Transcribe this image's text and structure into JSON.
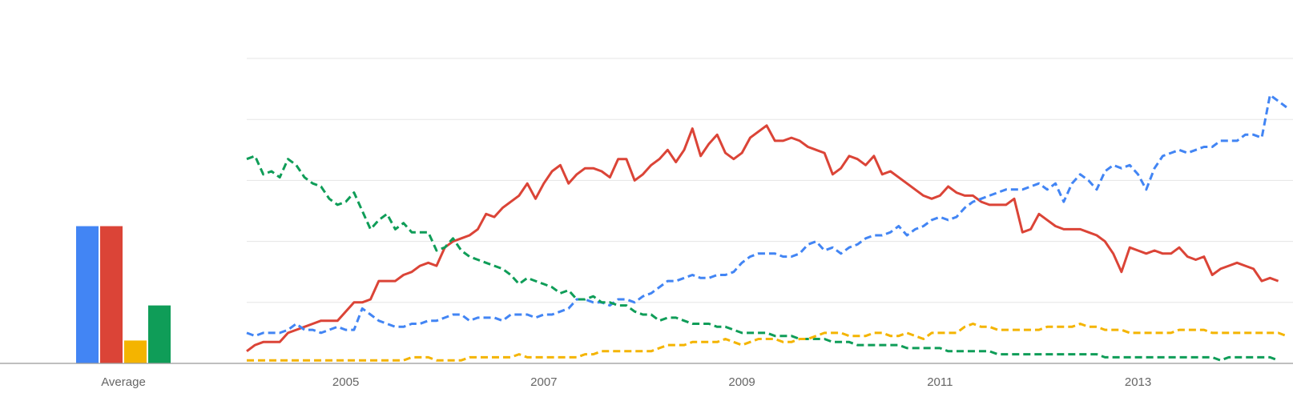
{
  "chart_data": [
    {
      "type": "bar",
      "categories": [
        "Average"
      ],
      "tick_labels": [
        "Average"
      ],
      "ylim": [
        0,
        100
      ],
      "series": [
        {
          "color": "#4285f4",
          "values": [
            45
          ]
        },
        {
          "color": "#db4437",
          "values": [
            45
          ]
        },
        {
          "color": "#f4b400",
          "values": [
            7.5
          ]
        },
        {
          "color": "#0f9d58",
          "values": [
            19
          ]
        }
      ]
    },
    {
      "type": "line",
      "x_start": 2004.0,
      "x_step": 0.08333,
      "xlim": [
        2004.0,
        2014.5
      ],
      "ylim": [
        0,
        100
      ],
      "x_ticks": [
        2005,
        2007,
        2009,
        2011,
        2013
      ],
      "tick_labels": [
        "2005",
        "2007",
        "2009",
        "2011",
        "2013"
      ],
      "grid": true,
      "series": [
        {
          "color": "#db4437",
          "dashed": false,
          "values": [
            4,
            6,
            7,
            7,
            7,
            10,
            11,
            12,
            13,
            14,
            14,
            14,
            17,
            20,
            20,
            21,
            27,
            27,
            27,
            29,
            30,
            32,
            33,
            32,
            38,
            40,
            41,
            42,
            44,
            49,
            48,
            51,
            53,
            55,
            59,
            54,
            59,
            63,
            65,
            59,
            62,
            64,
            64,
            63,
            61,
            67,
            67,
            60,
            62,
            65,
            67,
            70,
            66,
            70,
            77,
            68,
            72,
            75,
            69,
            67,
            69,
            74,
            76,
            78,
            73,
            73,
            74,
            73,
            71,
            70,
            69,
            62,
            64,
            68,
            67,
            65,
            68,
            62,
            63,
            61,
            59,
            57,
            55,
            54,
            55,
            58,
            56,
            55,
            55,
            53,
            52,
            52,
            52,
            54,
            43,
            44,
            49,
            47,
            45,
            44,
            44,
            44,
            43,
            42,
            40,
            36,
            30,
            38,
            37,
            36,
            37,
            36,
            36,
            38,
            35,
            34,
            35,
            29,
            31,
            32,
            33,
            32,
            31,
            27,
            28,
            27
          ]
        },
        {
          "color": "#4285f4",
          "dashed": true,
          "values": [
            10,
            9,
            10,
            10,
            10,
            11,
            13,
            11,
            11,
            10,
            11,
            12,
            11,
            11,
            18,
            16,
            14,
            13,
            12,
            12,
            13,
            13,
            14,
            14,
            15,
            16,
            16,
            14,
            15,
            15,
            15,
            14,
            16,
            16,
            16,
            15,
            16,
            16,
            17,
            18,
            21,
            21,
            20,
            20,
            19,
            21,
            21,
            20,
            22,
            23,
            25,
            27,
            27,
            28,
            29,
            28,
            28,
            29,
            29,
            30,
            33,
            35,
            36,
            36,
            36,
            35,
            35,
            36,
            39,
            40,
            37,
            38,
            36,
            38,
            39,
            41,
            42,
            42,
            43,
            45,
            42,
            44,
            45,
            47,
            48,
            47,
            48,
            51,
            53,
            54,
            55,
            56,
            57,
            57,
            57,
            58,
            59,
            57,
            59,
            53,
            59,
            62,
            60,
            57,
            63,
            65,
            64,
            65,
            62,
            57,
            64,
            68,
            69,
            70,
            69,
            70,
            71,
            71,
            73,
            73,
            73,
            75,
            75,
            74,
            88,
            86,
            84,
            84,
            79,
            88,
            86,
            90,
            93,
            95,
            94,
            91,
            89,
            95,
            94
          ]
        },
        {
          "color": "#0f9d58",
          "dashed": true,
          "values": [
            67,
            68,
            62,
            63,
            61,
            67,
            65,
            61,
            59,
            58,
            54,
            52,
            53,
            56,
            50,
            44,
            47,
            49,
            44,
            46,
            43,
            43,
            43,
            37,
            38,
            41,
            37,
            35,
            34,
            33,
            32,
            31,
            29,
            26,
            28,
            27,
            26,
            25,
            23,
            24,
            21,
            21,
            22,
            20,
            20,
            19,
            19,
            17,
            16,
            16,
            14,
            15,
            15,
            14,
            13,
            13,
            13,
            12,
            12,
            11,
            10,
            10,
            10,
            10,
            9,
            9,
            9,
            8,
            8,
            8,
            8,
            7,
            7,
            7,
            6,
            6,
            6,
            6,
            6,
            6,
            5,
            5,
            5,
            5,
            5,
            4,
            4,
            4,
            4,
            4,
            4,
            3,
            3,
            3,
            3,
            3,
            3,
            3,
            3,
            3,
            3,
            3,
            3,
            3,
            2,
            2,
            2,
            2,
            2,
            2,
            2,
            2,
            2,
            2,
            2,
            2,
            2,
            2,
            1,
            2,
            2,
            2,
            2,
            2,
            2,
            1
          ]
        },
        {
          "color": "#f4b400",
          "dashed": true,
          "values": [
            1,
            1,
            1,
            1,
            1,
            1,
            1,
            1,
            1,
            1,
            1,
            1,
            1,
            1,
            1,
            1,
            1,
            1,
            1,
            1,
            2,
            2,
            2,
            1,
            1,
            1,
            1,
            2,
            2,
            2,
            2,
            2,
            2,
            3,
            2,
            2,
            2,
            2,
            2,
            2,
            2,
            3,
            3,
            4,
            4,
            4,
            4,
            4,
            4,
            4,
            5,
            6,
            6,
            6,
            7,
            7,
            7,
            7,
            8,
            7,
            6,
            7,
            8,
            8,
            8,
            7,
            7,
            8,
            8,
            9,
            10,
            10,
            10,
            9,
            9,
            9,
            10,
            10,
            9,
            9,
            10,
            9,
            8,
            10,
            10,
            10,
            10,
            12,
            13,
            12,
            12,
            11,
            11,
            11,
            11,
            11,
            11,
            12,
            12,
            12,
            12,
            13,
            12,
            12,
            11,
            11,
            11,
            10,
            10,
            10,
            10,
            10,
            10,
            11,
            11,
            11,
            11,
            10,
            10,
            10,
            10,
            10,
            10,
            10,
            10,
            10,
            9,
            9,
            9,
            9,
            9,
            9,
            10,
            9,
            9,
            9,
            9,
            9,
            9,
            9,
            9,
            9,
            9,
            9,
            9,
            9,
            9,
            8,
            8,
            8,
            8,
            8,
            8,
            8,
            8,
            8,
            8,
            7,
            7,
            7,
            7,
            7,
            7,
            7,
            7,
            7,
            7,
            7,
            7,
            7,
            7,
            7,
            7,
            7,
            7,
            7,
            7,
            7,
            7,
            7,
            7
          ]
        }
      ]
    }
  ]
}
